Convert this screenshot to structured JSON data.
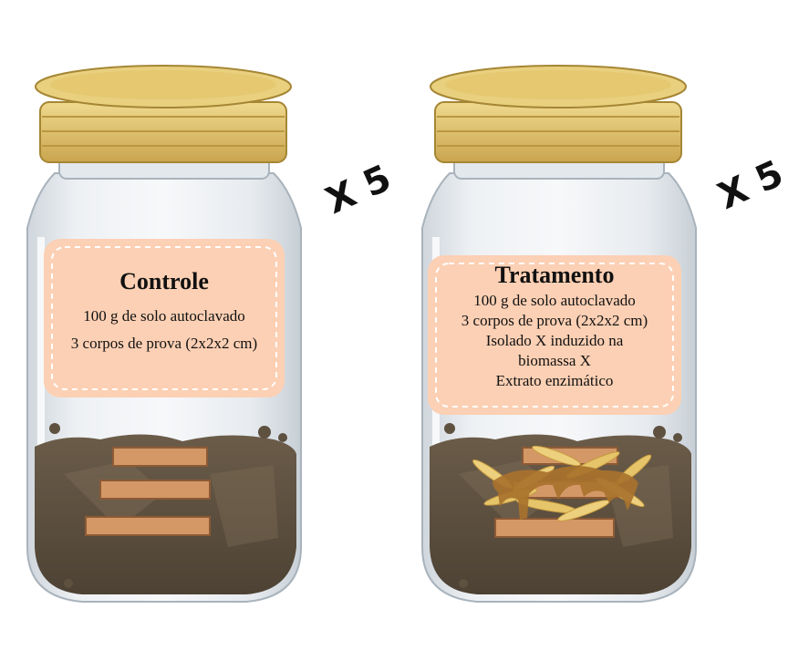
{
  "jars": [
    {
      "title": "Controle",
      "lines": [
        "100 g de solo autoclavado",
        "3 corpos de prova (2x2x2 cm)"
      ],
      "multiplier": "X 5"
    },
    {
      "title": "Tratamento",
      "lines": [
        "100 g de solo autoclavado",
        "3 corpos de prova (2x2x2 cm)",
        "Isolado X induzido na",
        "biomassa X",
        "Extrato enzimático"
      ],
      "multiplier": "X 5"
    }
  ],
  "colors": {
    "label_fill": "#fcd0b4",
    "lid": "#e3c877",
    "soil": "#5e5140",
    "wood": "#d39866",
    "biomass": "#e6c56a",
    "extract": "#a8722d"
  }
}
